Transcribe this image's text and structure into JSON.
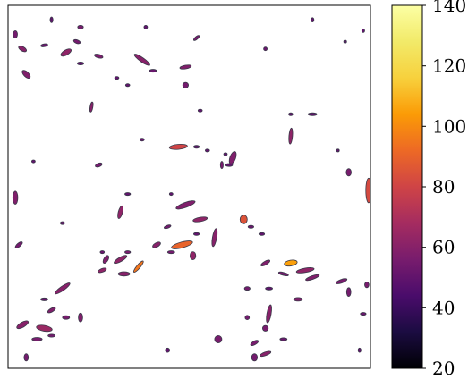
{
  "chart_data": {
    "type": "heatmap",
    "title": "",
    "xlabel": "",
    "ylabel": "",
    "background": "#ffffff",
    "colormap": "inferno",
    "colorbar": {
      "min": 20,
      "max": 140,
      "ticks": [
        20,
        40,
        60,
        80,
        100,
        120,
        140
      ],
      "tick_labels": [
        "20",
        "40",
        "60",
        "80",
        "100",
        "120",
        "140"
      ],
      "placement": "right"
    },
    "axes_ticks_visible": false,
    "grid": false,
    "blobs": [
      {
        "x": 0.02,
        "y": 0.08,
        "rx": 0.006,
        "ry": 0.01,
        "a": 0,
        "v": 55
      },
      {
        "x": 0.04,
        "y": 0.12,
        "rx": 0.012,
        "ry": 0.006,
        "a": 30,
        "v": 60
      },
      {
        "x": 0.05,
        "y": 0.19,
        "rx": 0.014,
        "ry": 0.007,
        "a": 45,
        "v": 58
      },
      {
        "x": 0.1,
        "y": 0.11,
        "rx": 0.01,
        "ry": 0.004,
        "a": -10,
        "v": 52
      },
      {
        "x": 0.16,
        "y": 0.13,
        "rx": 0.016,
        "ry": 0.007,
        "a": -30,
        "v": 62
      },
      {
        "x": 0.19,
        "y": 0.1,
        "rx": 0.01,
        "ry": 0.005,
        "a": 20,
        "v": 55
      },
      {
        "x": 0.2,
        "y": 0.16,
        "rx": 0.009,
        "ry": 0.004,
        "a": 0,
        "v": 50
      },
      {
        "x": 0.25,
        "y": 0.14,
        "rx": 0.012,
        "ry": 0.005,
        "a": 15,
        "v": 57
      },
      {
        "x": 0.2,
        "y": 0.06,
        "rx": 0.008,
        "ry": 0.005,
        "a": 0,
        "v": 56
      },
      {
        "x": 0.37,
        "y": 0.15,
        "rx": 0.026,
        "ry": 0.006,
        "a": 35,
        "v": 60
      },
      {
        "x": 0.4,
        "y": 0.18,
        "rx": 0.01,
        "ry": 0.004,
        "a": 0,
        "v": 52
      },
      {
        "x": 0.49,
        "y": 0.17,
        "rx": 0.016,
        "ry": 0.005,
        "a": -10,
        "v": 58
      },
      {
        "x": 0.52,
        "y": 0.09,
        "rx": 0.01,
        "ry": 0.004,
        "a": -40,
        "v": 56
      },
      {
        "x": 0.49,
        "y": 0.22,
        "rx": 0.008,
        "ry": 0.008,
        "a": 0,
        "v": 55
      },
      {
        "x": 0.23,
        "y": 0.28,
        "rx": 0.004,
        "ry": 0.014,
        "a": 10,
        "v": 60
      },
      {
        "x": 0.25,
        "y": 0.44,
        "rx": 0.01,
        "ry": 0.005,
        "a": -20,
        "v": 55
      },
      {
        "x": 0.47,
        "y": 0.39,
        "rx": 0.025,
        "ry": 0.007,
        "a": -5,
        "v": 80
      },
      {
        "x": 0.52,
        "y": 0.39,
        "rx": 0.008,
        "ry": 0.004,
        "a": 0,
        "v": 50
      },
      {
        "x": 0.62,
        "y": 0.42,
        "rx": 0.008,
        "ry": 0.018,
        "a": 20,
        "v": 58
      },
      {
        "x": 0.78,
        "y": 0.36,
        "rx": 0.005,
        "ry": 0.022,
        "a": 5,
        "v": 62
      },
      {
        "x": 0.84,
        "y": 0.3,
        "rx": 0.012,
        "ry": 0.004,
        "a": 0,
        "v": 50
      },
      {
        "x": 0.94,
        "y": 0.46,
        "rx": 0.007,
        "ry": 0.01,
        "a": 0,
        "v": 56
      },
      {
        "x": 0.995,
        "y": 0.51,
        "rx": 0.008,
        "ry": 0.034,
        "a": 0,
        "v": 82
      },
      {
        "x": 0.61,
        "y": 0.44,
        "rx": 0.01,
        "ry": 0.004,
        "a": 0,
        "v": 50
      },
      {
        "x": 0.02,
        "y": 0.53,
        "rx": 0.007,
        "ry": 0.018,
        "a": 0,
        "v": 58
      },
      {
        "x": 0.31,
        "y": 0.57,
        "rx": 0.006,
        "ry": 0.018,
        "a": 15,
        "v": 62
      },
      {
        "x": 0.33,
        "y": 0.52,
        "rx": 0.008,
        "ry": 0.004,
        "a": 0,
        "v": 50
      },
      {
        "x": 0.49,
        "y": 0.55,
        "rx": 0.028,
        "ry": 0.007,
        "a": -20,
        "v": 58
      },
      {
        "x": 0.53,
        "y": 0.59,
        "rx": 0.02,
        "ry": 0.006,
        "a": -10,
        "v": 62
      },
      {
        "x": 0.57,
        "y": 0.64,
        "rx": 0.006,
        "ry": 0.025,
        "a": 10,
        "v": 60
      },
      {
        "x": 0.65,
        "y": 0.59,
        "rx": 0.01,
        "ry": 0.012,
        "a": 0,
        "v": 85
      },
      {
        "x": 0.67,
        "y": 0.61,
        "rx": 0.008,
        "ry": 0.004,
        "a": 0,
        "v": 52
      },
      {
        "x": 0.7,
        "y": 0.63,
        "rx": 0.008,
        "ry": 0.004,
        "a": 0,
        "v": 50
      },
      {
        "x": 0.03,
        "y": 0.66,
        "rx": 0.012,
        "ry": 0.005,
        "a": -40,
        "v": 55
      },
      {
        "x": 0.31,
        "y": 0.7,
        "rx": 0.02,
        "ry": 0.006,
        "a": -30,
        "v": 62
      },
      {
        "x": 0.32,
        "y": 0.74,
        "rx": 0.016,
        "ry": 0.006,
        "a": 0,
        "v": 60
      },
      {
        "x": 0.36,
        "y": 0.72,
        "rx": 0.02,
        "ry": 0.005,
        "a": -50,
        "v": 95
      },
      {
        "x": 0.33,
        "y": 0.68,
        "rx": 0.008,
        "ry": 0.004,
        "a": 0,
        "v": 56
      },
      {
        "x": 0.27,
        "y": 0.7,
        "rx": 0.006,
        "ry": 0.012,
        "a": 30,
        "v": 58
      },
      {
        "x": 0.26,
        "y": 0.73,
        "rx": 0.012,
        "ry": 0.005,
        "a": -20,
        "v": 62
      },
      {
        "x": 0.41,
        "y": 0.66,
        "rx": 0.012,
        "ry": 0.006,
        "a": -30,
        "v": 60
      },
      {
        "x": 0.48,
        "y": 0.66,
        "rx": 0.03,
        "ry": 0.008,
        "a": -15,
        "v": 90
      },
      {
        "x": 0.45,
        "y": 0.68,
        "rx": 0.01,
        "ry": 0.004,
        "a": 0,
        "v": 55
      },
      {
        "x": 0.51,
        "y": 0.69,
        "rx": 0.008,
        "ry": 0.011,
        "a": 0,
        "v": 62
      },
      {
        "x": 0.52,
        "y": 0.63,
        "rx": 0.008,
        "ry": 0.004,
        "a": 0,
        "v": 50
      },
      {
        "x": 0.71,
        "y": 0.71,
        "rx": 0.014,
        "ry": 0.005,
        "a": -30,
        "v": 58
      },
      {
        "x": 0.78,
        "y": 0.71,
        "rx": 0.018,
        "ry": 0.008,
        "a": -10,
        "v": 105
      },
      {
        "x": 0.82,
        "y": 0.73,
        "rx": 0.025,
        "ry": 0.006,
        "a": -10,
        "v": 62
      },
      {
        "x": 0.84,
        "y": 0.75,
        "rx": 0.02,
        "ry": 0.005,
        "a": -20,
        "v": 58
      },
      {
        "x": 0.76,
        "y": 0.74,
        "rx": 0.014,
        "ry": 0.004,
        "a": 15,
        "v": 55
      },
      {
        "x": 0.92,
        "y": 0.76,
        "rx": 0.016,
        "ry": 0.005,
        "a": -20,
        "v": 56
      },
      {
        "x": 0.94,
        "y": 0.79,
        "rx": 0.006,
        "ry": 0.012,
        "a": 0,
        "v": 55
      },
      {
        "x": 0.99,
        "y": 0.77,
        "rx": 0.006,
        "ry": 0.008,
        "a": 0,
        "v": 56
      },
      {
        "x": 0.66,
        "y": 0.78,
        "rx": 0.008,
        "ry": 0.005,
        "a": 0,
        "v": 55
      },
      {
        "x": 0.72,
        "y": 0.78,
        "rx": 0.01,
        "ry": 0.004,
        "a": 0,
        "v": 50
      },
      {
        "x": 0.8,
        "y": 0.81,
        "rx": 0.012,
        "ry": 0.005,
        "a": 0,
        "v": 58
      },
      {
        "x": 0.15,
        "y": 0.78,
        "rx": 0.025,
        "ry": 0.006,
        "a": -35,
        "v": 60
      },
      {
        "x": 0.12,
        "y": 0.84,
        "rx": 0.012,
        "ry": 0.005,
        "a": -30,
        "v": 58
      },
      {
        "x": 0.1,
        "y": 0.81,
        "rx": 0.01,
        "ry": 0.004,
        "a": 0,
        "v": 52
      },
      {
        "x": 0.16,
        "y": 0.86,
        "rx": 0.01,
        "ry": 0.005,
        "a": 0,
        "v": 56
      },
      {
        "x": 0.2,
        "y": 0.86,
        "rx": 0.006,
        "ry": 0.012,
        "a": 0,
        "v": 58
      },
      {
        "x": 0.04,
        "y": 0.88,
        "rx": 0.018,
        "ry": 0.007,
        "a": -30,
        "v": 60
      },
      {
        "x": 0.1,
        "y": 0.89,
        "rx": 0.022,
        "ry": 0.008,
        "a": 10,
        "v": 65
      },
      {
        "x": 0.12,
        "y": 0.91,
        "rx": 0.01,
        "ry": 0.004,
        "a": 0,
        "v": 55
      },
      {
        "x": 0.08,
        "y": 0.92,
        "rx": 0.014,
        "ry": 0.005,
        "a": 0,
        "v": 56
      },
      {
        "x": 0.72,
        "y": 0.85,
        "rx": 0.006,
        "ry": 0.025,
        "a": 10,
        "v": 60
      },
      {
        "x": 0.71,
        "y": 0.89,
        "rx": 0.008,
        "ry": 0.008,
        "a": 0,
        "v": 56
      },
      {
        "x": 0.66,
        "y": 0.86,
        "rx": 0.006,
        "ry": 0.006,
        "a": 0,
        "v": 55
      },
      {
        "x": 0.68,
        "y": 0.93,
        "rx": 0.012,
        "ry": 0.005,
        "a": -30,
        "v": 56
      },
      {
        "x": 0.71,
        "y": 0.96,
        "rx": 0.016,
        "ry": 0.005,
        "a": -20,
        "v": 60
      },
      {
        "x": 0.76,
        "y": 0.92,
        "rx": 0.01,
        "ry": 0.004,
        "a": 0,
        "v": 52
      },
      {
        "x": 0.58,
        "y": 0.92,
        "rx": 0.01,
        "ry": 0.01,
        "a": 0,
        "v": 56
      },
      {
        "x": 0.68,
        "y": 0.97,
        "rx": 0.008,
        "ry": 0.01,
        "a": 0,
        "v": 55
      },
      {
        "x": 0.05,
        "y": 0.97,
        "rx": 0.006,
        "ry": 0.01,
        "a": 0,
        "v": 55
      },
      {
        "x": 0.44,
        "y": 0.95,
        "rx": 0.006,
        "ry": 0.006,
        "a": 0,
        "v": 50
      },
      {
        "x": 0.98,
        "y": 0.85,
        "rx": 0.008,
        "ry": 0.004,
        "a": 0,
        "v": 52
      },
      {
        "x": 0.55,
        "y": 0.4,
        "rx": 0.006,
        "ry": 0.004,
        "a": 0,
        "v": 50
      },
      {
        "x": 0.59,
        "y": 0.44,
        "rx": 0.004,
        "ry": 0.01,
        "a": 0,
        "v": 56
      },
      {
        "x": 0.12,
        "y": 0.04,
        "rx": 0.004,
        "ry": 0.008,
        "a": 0,
        "v": 50
      },
      {
        "x": 0.84,
        "y": 0.04,
        "rx": 0.004,
        "ry": 0.006,
        "a": 0,
        "v": 50
      },
      {
        "x": 0.98,
        "y": 0.07,
        "rx": 0.004,
        "ry": 0.005,
        "a": 0,
        "v": 50
      },
      {
        "x": 0.38,
        "y": 0.06,
        "rx": 0.005,
        "ry": 0.005,
        "a": 0,
        "v": 50
      },
      {
        "x": 0.71,
        "y": 0.12,
        "rx": 0.005,
        "ry": 0.005,
        "a": 0,
        "v": 52
      },
      {
        "x": 0.33,
        "y": 0.22,
        "rx": 0.006,
        "ry": 0.004,
        "a": 0,
        "v": 50
      },
      {
        "x": 0.6,
        "y": 0.41,
        "rx": 0.005,
        "ry": 0.004,
        "a": 0,
        "v": 50
      },
      {
        "x": 0.44,
        "y": 0.61,
        "rx": 0.01,
        "ry": 0.004,
        "a": -20,
        "v": 55
      },
      {
        "x": 0.26,
        "y": 0.68,
        "rx": 0.006,
        "ry": 0.004,
        "a": 0,
        "v": 52
      },
      {
        "x": 0.37,
        "y": 0.37,
        "rx": 0.006,
        "ry": 0.004,
        "a": 0,
        "v": 52
      },
      {
        "x": 0.53,
        "y": 0.29,
        "rx": 0.006,
        "ry": 0.004,
        "a": 0,
        "v": 50
      },
      {
        "x": 0.3,
        "y": 0.2,
        "rx": 0.006,
        "ry": 0.004,
        "a": 0,
        "v": 50
      },
      {
        "x": 0.78,
        "y": 0.3,
        "rx": 0.006,
        "ry": 0.004,
        "a": 0,
        "v": 50
      },
      {
        "x": 0.91,
        "y": 0.4,
        "rx": 0.004,
        "ry": 0.004,
        "a": 0,
        "v": 50
      },
      {
        "x": 0.93,
        "y": 0.1,
        "rx": 0.004,
        "ry": 0.004,
        "a": 0,
        "v": 50
      },
      {
        "x": 0.15,
        "y": 0.6,
        "rx": 0.006,
        "ry": 0.004,
        "a": 0,
        "v": 52
      },
      {
        "x": 0.07,
        "y": 0.43,
        "rx": 0.005,
        "ry": 0.004,
        "a": 0,
        "v": 50
      },
      {
        "x": 0.97,
        "y": 0.95,
        "rx": 0.004,
        "ry": 0.006,
        "a": 0,
        "v": 50
      },
      {
        "x": 0.45,
        "y": 0.52,
        "rx": 0.005,
        "ry": 0.004,
        "a": 0,
        "v": 50
      }
    ]
  }
}
